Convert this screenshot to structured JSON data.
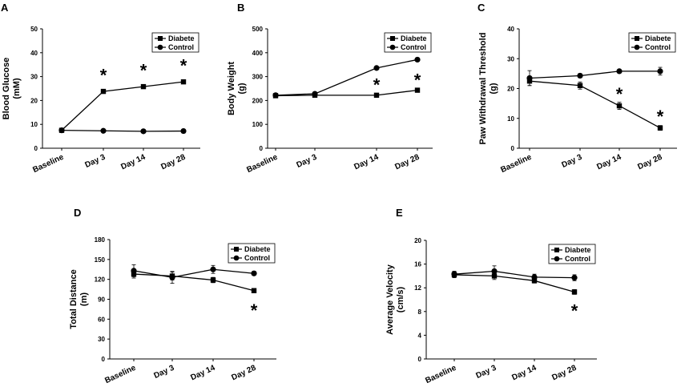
{
  "chart_data": [
    {
      "panel": "A",
      "type": "line",
      "ylabel": [
        "Blood Glucose",
        "(mM)"
      ],
      "categories": [
        "Baseline",
        "Day 3",
        "Day 14",
        "Day 28"
      ],
      "ylim": [
        0,
        50
      ],
      "yticks": [
        0,
        10,
        20,
        30,
        40,
        50
      ],
      "series": [
        {
          "name": "Diabete",
          "marker": "square",
          "values": [
            7.5,
            23.8,
            25.8,
            27.8
          ],
          "errors": [
            0.5,
            0.6,
            0.6,
            0.6
          ]
        },
        {
          "name": "Control",
          "marker": "circle",
          "values": [
            7.5,
            7.3,
            7.1,
            7.2
          ],
          "errors": [
            0.3,
            0.3,
            0.3,
            0.3
          ]
        }
      ],
      "significance": [
        {
          "index": 1,
          "value": 31
        },
        {
          "index": 2,
          "value": 33
        },
        {
          "index": 3,
          "value": 35
        }
      ],
      "legend": "top-right"
    },
    {
      "panel": "B",
      "type": "line",
      "ylabel": [
        "Body Weight",
        "(g)"
      ],
      "categories": [
        "Baseline",
        "Day 3",
        "Day 14",
        "Day 28"
      ],
      "ylim": [
        0,
        500
      ],
      "yticks": [
        0,
        100,
        200,
        300,
        400,
        500
      ],
      "series": [
        {
          "name": "Diabete",
          "marker": "square",
          "values": [
            220,
            222,
            222,
            243
          ],
          "errors": [
            5,
            5,
            5,
            6
          ]
        },
        {
          "name": "Control",
          "marker": "circle",
          "values": [
            222,
            228,
            336,
            371
          ],
          "errors": [
            5,
            5,
            6,
            6
          ]
        }
      ],
      "significance": [
        {
          "index": 2,
          "value": 270
        },
        {
          "index": 3,
          "value": 290
        }
      ],
      "legend": "top-right"
    },
    {
      "panel": "C",
      "type": "line",
      "ylabel": [
        "Paw Withdrawal Threshold",
        "(g)"
      ],
      "categories": [
        "Baseline",
        "Day 3",
        "Day 14",
        "Day 28"
      ],
      "ylim": [
        0,
        40
      ],
      "yticks": [
        0,
        10,
        20,
        30,
        40
      ],
      "series": [
        {
          "name": "Diabete",
          "marker": "square",
          "values": [
            22.5,
            21,
            14.2,
            6.8
          ],
          "errors": [
            1.5,
            1.2,
            1.2,
            0.8
          ]
        },
        {
          "name": "Control",
          "marker": "circle",
          "values": [
            23.5,
            24.3,
            25.8,
            25.8
          ],
          "errors": [
            2.5,
            0.7,
            0.6,
            1.3
          ]
        }
      ],
      "significance": [
        {
          "index": 2,
          "value": 18.5
        },
        {
          "index": 3,
          "value": 11
        }
      ],
      "legend": "top-right"
    },
    {
      "panel": "D",
      "type": "line",
      "ylabel": [
        "Total Distance",
        "(m)"
      ],
      "categories": [
        "Baseline",
        "Day 3",
        "Day 14",
        "Day 28"
      ],
      "ylim": [
        0,
        180
      ],
      "yticks": [
        0,
        30,
        60,
        90,
        120,
        150,
        180
      ],
      "series": [
        {
          "name": "Diabete",
          "marker": "square",
          "values": [
            128,
            125,
            119,
            103
          ],
          "errors": [
            6,
            6,
            4,
            3
          ]
        },
        {
          "name": "Control",
          "marker": "circle",
          "values": [
            133,
            123,
            135,
            129
          ],
          "errors": [
            9,
            9,
            6,
            3
          ]
        }
      ],
      "significance": [
        {
          "index": 3,
          "value": 75
        }
      ],
      "legend": "top-right"
    },
    {
      "panel": "E",
      "type": "line",
      "ylabel": [
        "Average Velocity",
        "(cm/s)"
      ],
      "categories": [
        "Baseline",
        "Day 3",
        "Day 14",
        "Day 28"
      ],
      "ylim": [
        0,
        20
      ],
      "yticks": [
        0,
        4,
        8,
        12,
        16,
        20
      ],
      "series": [
        {
          "name": "Diabete",
          "marker": "square",
          "values": [
            14.2,
            14,
            13.2,
            11.3
          ],
          "errors": [
            0.5,
            0.6,
            0.4,
            0.4
          ]
        },
        {
          "name": "Control",
          "marker": "circle",
          "values": [
            14.3,
            14.8,
            13.8,
            13.7
          ],
          "errors": [
            0.5,
            0.9,
            0.5,
            0.5
          ]
        }
      ],
      "significance": [
        {
          "index": 3,
          "value": 8.3
        }
      ],
      "legend": "top-right"
    }
  ]
}
